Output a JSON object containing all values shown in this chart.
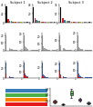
{
  "panels_row1": {
    "titles": [
      "Subject 1",
      "Subject 2",
      "Subject 3"
    ],
    "subtitle": [
      "Blood clone 1",
      "Blood clone 2",
      "Blood clone 3"
    ],
    "bar_data": [
      [
        40,
        9,
        5,
        4,
        3,
        2,
        2,
        1.5,
        1,
        1,
        1,
        1,
        1,
        1,
        1
      ],
      [
        35,
        10,
        6,
        4,
        3,
        2,
        2,
        1.5,
        1,
        1,
        1,
        1,
        1,
        1,
        1
      ],
      [
        30,
        8,
        5,
        3,
        3,
        2,
        1.5,
        1,
        1,
        1,
        1,
        1,
        1,
        1,
        1
      ]
    ],
    "bar_colors_multi": [
      [
        "#000000",
        "#e41a1c",
        "#377eb8",
        "#4daf4a",
        "#984ea3",
        "#ff7f00",
        "#a65628",
        "#f781bf",
        "#999999",
        "#dede00",
        "#cccccc",
        "#888888",
        "#bbbbbb",
        "#444444",
        "#dddddd"
      ],
      [
        "#000000",
        "#e41a1c",
        "#377eb8",
        "#4daf4a",
        "#984ea3",
        "#ff7f00",
        "#a65628",
        "#f781bf",
        "#999999",
        "#dede00",
        "#cccccc",
        "#888888",
        "#bbbbbb",
        "#444444",
        "#dddddd"
      ],
      [
        "#000000",
        "#e41a1c",
        "#377eb8",
        "#4daf4a",
        "#984ea3",
        "#ff7f00",
        "#a65628",
        "#f781bf",
        "#999999",
        "#dede00",
        "#cccccc",
        "#888888",
        "#bbbbbb",
        "#444444",
        "#dddddd"
      ]
    ],
    "ylims": [
      45,
      40,
      35
    ]
  },
  "panels_row2": {
    "n_panels": 5,
    "bar_data": [
      [
        20,
        6,
        4,
        3,
        2,
        2,
        1.5,
        1,
        1,
        1,
        1,
        1,
        1,
        1,
        1
      ],
      [
        18,
        5,
        4,
        3,
        2,
        2,
        1.5,
        1,
        1,
        1,
        1,
        1,
        1,
        1,
        1
      ],
      [
        22,
        6,
        4,
        3,
        2,
        2,
        1.5,
        1,
        1,
        1,
        1,
        1,
        1,
        1,
        1
      ],
      [
        15,
        5,
        3,
        2,
        2,
        1.5,
        1,
        1,
        1,
        1,
        1,
        1,
        1,
        1,
        1
      ],
      [
        17,
        4,
        3,
        2,
        2,
        1.5,
        1,
        1,
        1,
        1,
        1,
        1,
        1,
        1,
        1
      ]
    ],
    "bar_color": "#aaaaaa"
  },
  "panels_row3": {
    "n_panels": 5,
    "bar_data_blue": [
      [
        30,
        8,
        5,
        4,
        3,
        2,
        2,
        1.5,
        1,
        1,
        1,
        1,
        1,
        1,
        1
      ],
      [
        25,
        7,
        5,
        3,
        3,
        2,
        1.5,
        1,
        1,
        1,
        1,
        1,
        1,
        1,
        1
      ],
      [
        28,
        7,
        5,
        3,
        2,
        2,
        1.5,
        1,
        1,
        1,
        1,
        1,
        1,
        1,
        1
      ],
      [
        22,
        6,
        4,
        3,
        2,
        2,
        1.5,
        1,
        1,
        1,
        1,
        1,
        1,
        1,
        1
      ],
      [
        20,
        6,
        4,
        3,
        2,
        2,
        1.5,
        1,
        1,
        1,
        1,
        1,
        1,
        1,
        1
      ]
    ],
    "bar_data_red": [
      [
        10,
        4,
        2,
        1.5,
        1,
        1,
        0.5,
        0,
        0,
        0,
        0,
        0,
        0,
        0,
        0
      ],
      [
        14,
        5,
        3,
        2,
        1.5,
        1,
        0.5,
        0,
        0,
        0,
        0,
        0,
        0,
        0,
        0
      ],
      [
        6,
        3,
        2,
        1,
        0.5,
        0,
        0,
        0,
        0,
        0,
        0,
        0,
        0,
        0,
        0
      ],
      [
        10,
        4,
        2,
        1.5,
        1,
        0.5,
        0,
        0,
        0,
        0,
        0,
        0,
        0,
        0,
        0
      ],
      [
        5,
        2,
        1.5,
        1,
        0.5,
        0,
        0,
        0,
        0,
        0,
        0,
        0,
        0,
        0,
        0
      ]
    ],
    "blue_color": "#4472c4",
    "red_color": "#e41a1c"
  },
  "table": {
    "row_colors": [
      "#e41a1c",
      "#ff7f00",
      "#4daf4a",
      "#377eb8"
    ],
    "n_cols": 8,
    "col_labels": [
      "",
      "",
      "",
      "",
      "",
      "",
      "",
      ""
    ],
    "row_labels": [
      "",
      "",
      "",
      ""
    ]
  },
  "boxplot": {
    "n_groups": 5,
    "group_colors": [
      "#e41a1c",
      "#ff7f00",
      "#4daf4a",
      "#984ea3",
      "#377eb8"
    ],
    "data": [
      [
        0.05,
        0.1,
        0.08,
        0.12,
        0.07,
        0.09,
        0.11
      ],
      [
        0.02,
        0.04,
        0.03,
        0.05,
        0.04,
        0.03,
        0.04
      ],
      [
        0.15,
        0.25,
        0.2,
        0.3,
        0.22,
        0.18,
        0.28
      ],
      [
        0.08,
        0.12,
        0.1,
        0.15,
        0.11,
        0.09,
        0.13
      ],
      [
        0.03,
        0.06,
        0.05,
        0.08,
        0.06,
        0.04,
        0.07
      ]
    ]
  },
  "bg": "#ffffff"
}
